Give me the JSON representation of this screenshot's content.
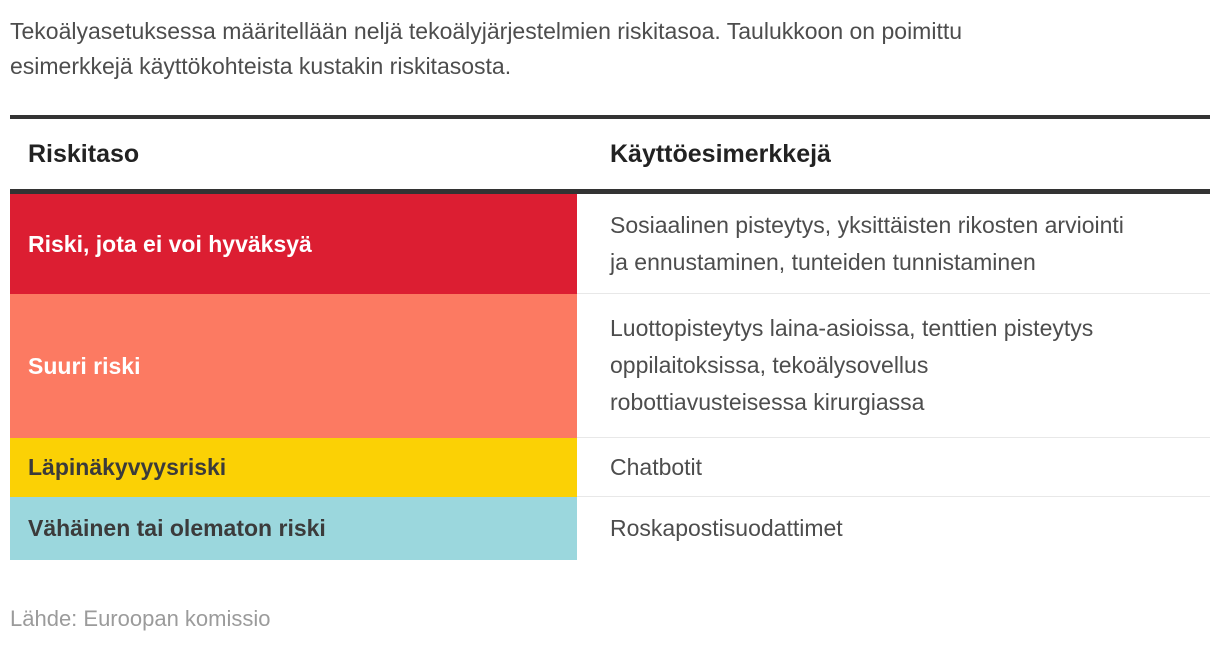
{
  "intro": "Tekoälyasetuksessa määritellään neljä tekoälyjärjestelmien riskitasoa. Taulukkoon on poimittu\nesimerkkejä käyttökohteista kustakin riskitasosta.",
  "table": {
    "columns": [
      {
        "label": "Riskitaso"
      },
      {
        "label": "Käyttöesimerkkejä"
      }
    ],
    "rows": [
      {
        "level": "Riski, jota ei voi hyväksyä",
        "examples": "Sosiaalinen pisteytys, yksittäisten rikosten arviointi\nja ennustaminen, tunteiden tunnistaminen",
        "color": "#dc1e32",
        "text_color": "#ffffff"
      },
      {
        "level": "Suuri riski",
        "examples": "Luottopisteytys laina-asioissa, tenttien pisteytys\noppilaitoksissa, tekoälysovellus\nrobottiavusteisessa kirurgiassa",
        "color": "#fc7a62",
        "text_color": "#ffffff"
      },
      {
        "level": "Läpinäkyvyysriski",
        "examples": "Chatbotit",
        "color": "#fbd105",
        "text_color": "#3b3b3b"
      },
      {
        "level": "Vähäinen tai olematon riski",
        "examples": "Roskapostisuodattimet",
        "color": "#9bd7dd",
        "text_color": "#3b3b3b"
      }
    ]
  },
  "source": "Lähde: Euroopan komissio",
  "colors": {
    "background": "#ffffff",
    "border_dark": "#333333",
    "divider": "#e8e8e8",
    "heading_text": "#222222",
    "body_text": "#4d4d4d",
    "source_text": "#9b9b9b",
    "risk_unacceptable": "#dc1e32",
    "risk_high": "#fc7a62",
    "risk_transparency": "#fbd105",
    "risk_minimal": "#9bd7dd"
  },
  "chart_data": {
    "type": "table",
    "title": "",
    "columns": [
      "Riskitaso",
      "Käyttöesimerkkejä"
    ],
    "rows": [
      [
        "Riski, jota ei voi hyväksyä",
        "Sosiaalinen pisteytys, yksittäisten rikosten arviointi ja ennustaminen, tunteiden tunnistaminen"
      ],
      [
        "Suuri riski",
        "Luottopisteytys laina-asioissa, tenttien pisteytys oppilaitoksissa, tekoälysovellus robottiavusteisessa kirurgiassa"
      ],
      [
        "Läpinäkyvyysriski",
        "Chatbotit"
      ],
      [
        "Vähäinen tai olematon riski",
        "Roskapostisuodattimet"
      ]
    ],
    "row_colors": [
      "#dc1e32",
      "#fc7a62",
      "#fbd105",
      "#9bd7dd"
    ],
    "source": "Lähde: Euroopan komissio"
  }
}
